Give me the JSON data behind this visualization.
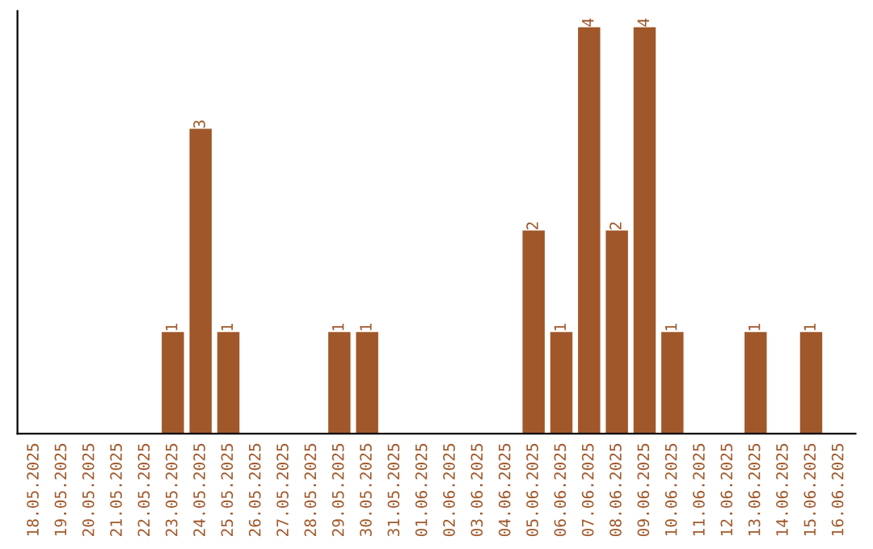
{
  "chart_data": {
    "type": "bar",
    "categories": [
      "18.05.2025",
      "19.05.2025",
      "20.05.2025",
      "21.05.2025",
      "22.05.2025",
      "23.05.2025",
      "24.05.2025",
      "25.05.2025",
      "26.05.2025",
      "27.05.2025",
      "28.05.2025",
      "29.05.2025",
      "30.05.2025",
      "31.05.2025",
      "01.06.2025",
      "02.06.2025",
      "03.06.2025",
      "04.06.2025",
      "05.06.2025",
      "06.06.2025",
      "07.06.2025",
      "08.06.2025",
      "09.06.2025",
      "10.06.2025",
      "11.06.2025",
      "12.06.2025",
      "13.06.2025",
      "14.06.2025",
      "15.06.2025",
      "16.06.2025"
    ],
    "values": [
      0,
      0,
      0,
      0,
      0,
      1,
      3,
      1,
      0,
      0,
      0,
      1,
      1,
      0,
      0,
      0,
      0,
      0,
      2,
      1,
      4,
      2,
      4,
      1,
      0,
      0,
      1,
      0,
      1,
      0
    ],
    "value_labels": [
      null,
      null,
      null,
      null,
      null,
      "1",
      "3",
      "1",
      null,
      null,
      null,
      "1",
      "1",
      null,
      null,
      null,
      null,
      null,
      "2",
      "1",
      "4",
      "2",
      "4",
      "1",
      null,
      null,
      "1",
      null,
      "1",
      null
    ],
    "color": "#a0582a",
    "tick_labels": "x",
    "grid": false,
    "legend": false
  }
}
